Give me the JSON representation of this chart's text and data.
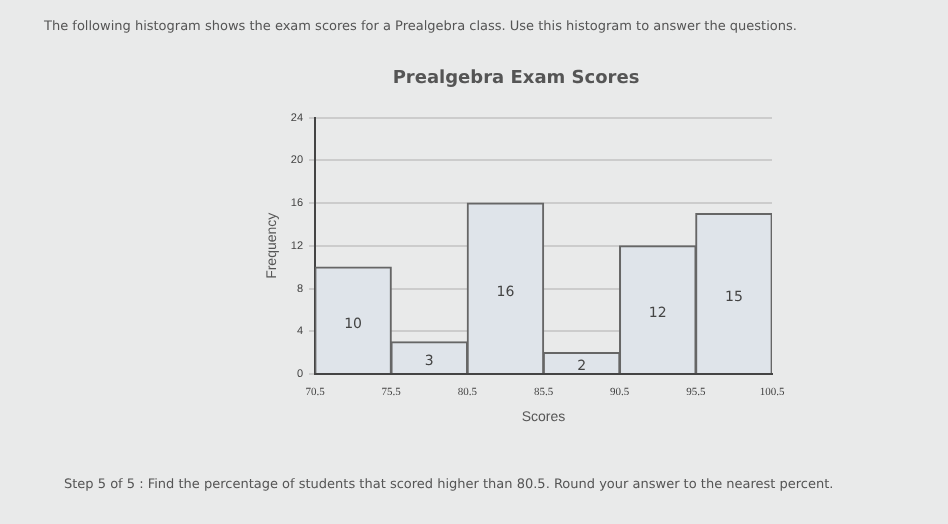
{
  "chart_data": {
    "type": "histogram",
    "title": "Prealgebra Exam Scores",
    "xlabel": "Scores",
    "ylabel": "Frequency",
    "bins": [
      70.5,
      75.5,
      80.5,
      85.5,
      90.5,
      95.5,
      100.5
    ],
    "values": [
      10,
      3,
      16,
      2,
      12,
      15
    ],
    "color": "#dfe4ea",
    "xlim": [
      70.5,
      100.5
    ],
    "xticks": [
      70.5,
      75.5,
      80.5,
      85.5,
      90.5,
      95.5,
      100.5
    ],
    "ylim": [
      0,
      24
    ],
    "yticks": [
      0,
      4,
      8,
      12,
      16,
      20,
      24
    ],
    "grid": "y",
    "data_labels": true,
    "annotations": [
      "The following histogram shows the exam scores for a Prealgebra class. Use this histogram to answer the questions.",
      "Step 5 of 5 : Find the percentage of students that scored higher than 80.5. Round your answer to the nearest percent."
    ]
  }
}
